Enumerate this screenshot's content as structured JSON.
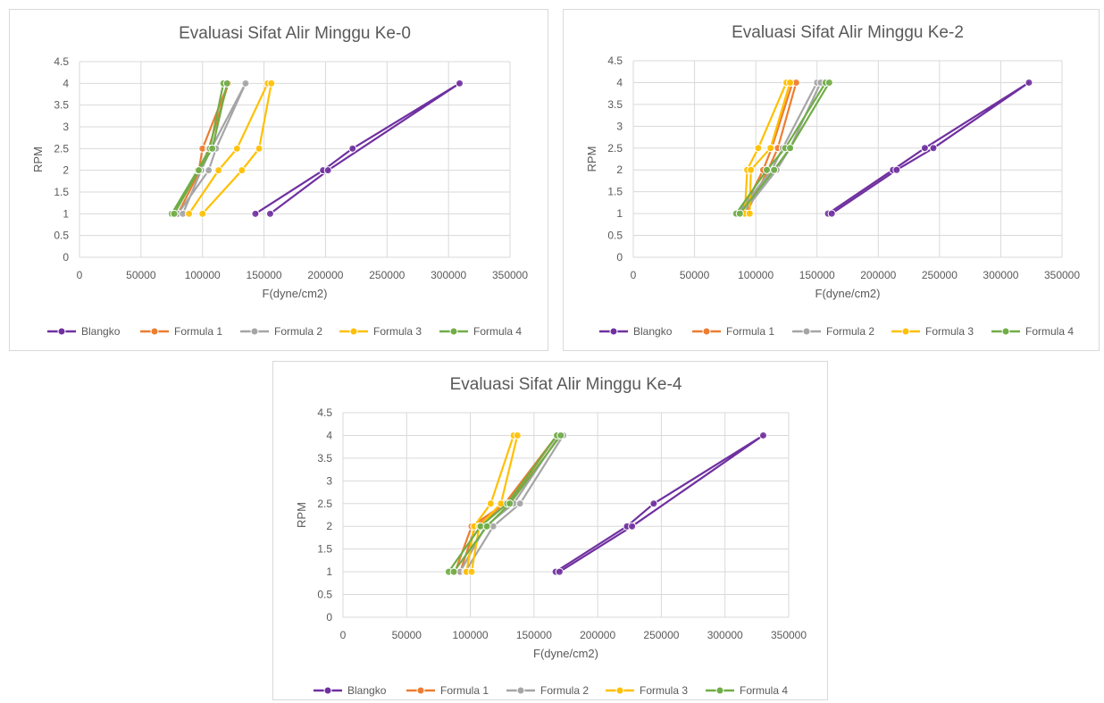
{
  "chart_data": [
    {
      "type": "line",
      "title": "Evaluasi Sifat Alir Minggu Ke-0",
      "xlabel": "F(dyne/cm2)",
      "ylabel": "RPM",
      "xlim": [
        0,
        350000
      ],
      "ylim": [
        0,
        4.5
      ],
      "x_ticks": [
        "0",
        "50000",
        "100000",
        "150000",
        "200000",
        "250000",
        "300000",
        "350000"
      ],
      "y_ticks": [
        "0",
        "0.5",
        "1",
        "1.5",
        "2",
        "2.5",
        "3",
        "3.5",
        "4",
        "4.5"
      ],
      "legend_position": "bottom",
      "grid": true,
      "series": [
        {
          "name": "Blangko",
          "color": "#7030a0",
          "points": [
            [
              143000,
              1
            ],
            [
              198000,
              2
            ],
            [
              222000,
              2.5
            ],
            [
              309000,
              4
            ],
            [
              202000,
              2
            ],
            [
              155000,
              1
            ]
          ]
        },
        {
          "name": "Formula 1",
          "color": "#ed7d31",
          "points": [
            [
              76000,
              1
            ],
            [
              97000,
              2
            ],
            [
              100000,
              2.5
            ],
            [
              121000,
              4
            ],
            [
              105000,
              2.5
            ],
            [
              98000,
              2
            ],
            [
              80000,
              1
            ]
          ]
        },
        {
          "name": "Formula 2",
          "color": "#a5a5a5",
          "points": [
            [
              80000,
              1
            ],
            [
              105000,
              2
            ],
            [
              111000,
              2.5
            ],
            [
              135000,
              4
            ],
            [
              107000,
              2.5
            ],
            [
              99000,
              2
            ],
            [
              84000,
              1
            ]
          ]
        },
        {
          "name": "Formula 3",
          "color": "#ffc000",
          "points": [
            [
              89000,
              1
            ],
            [
              113000,
              2
            ],
            [
              128000,
              2.5
            ],
            [
              153000,
              4
            ],
            [
              156000,
              4
            ],
            [
              146000,
              2.5
            ],
            [
              132000,
              2
            ],
            [
              100000,
              1
            ]
          ]
        },
        {
          "name": "Formula 4",
          "color": "#70ad47",
          "points": [
            [
              75000,
              1
            ],
            [
              96000,
              2
            ],
            [
              106000,
              2.5
            ],
            [
              117000,
              4
            ],
            [
              120000,
              4
            ],
            [
              108000,
              2.5
            ],
            [
              97000,
              2
            ],
            [
              77000,
              1
            ]
          ]
        }
      ]
    },
    {
      "type": "line",
      "title": "Evaluasi Sifat Alir Minggu Ke-2",
      "xlabel": "F(dyne/cm2)",
      "ylabel": "RPM",
      "xlim": [
        0,
        350000
      ],
      "ylim": [
        0,
        4.5
      ],
      "x_ticks": [
        "0",
        "50000",
        "100000",
        "150000",
        "200000",
        "250000",
        "300000",
        "350000"
      ],
      "y_ticks": [
        "0",
        "0.5",
        "1",
        "1.5",
        "2",
        "2.5",
        "3",
        "3.5",
        "4",
        "4.5"
      ],
      "legend_position": "bottom",
      "grid": true,
      "series": [
        {
          "name": "Blangko",
          "color": "#7030a0",
          "points": [
            [
              159000,
              1
            ],
            [
              212000,
              2
            ],
            [
              238000,
              2.5
            ],
            [
              323000,
              4
            ],
            [
              245000,
              2.5
            ],
            [
              215000,
              2
            ],
            [
              162000,
              1
            ]
          ]
        },
        {
          "name": "Formula 1",
          "color": "#ed7d31",
          "points": [
            [
              88000,
              1
            ],
            [
              106000,
              2
            ],
            [
              113000,
              2.5
            ],
            [
              130000,
              4
            ],
            [
              133000,
              4
            ],
            [
              118000,
              2.5
            ],
            [
              110000,
              2
            ],
            [
              92000,
              1
            ]
          ]
        },
        {
          "name": "Formula 2",
          "color": "#a5a5a5",
          "points": [
            [
              85000,
              1
            ],
            [
              113000,
              2
            ],
            [
              122000,
              2.5
            ],
            [
              150000,
              4
            ],
            [
              153000,
              4
            ],
            [
              128000,
              2.5
            ],
            [
              117000,
              2
            ],
            [
              89000,
              1
            ]
          ]
        },
        {
          "name": "Formula 3",
          "color": "#ffc000",
          "points": [
            [
              91000,
              1
            ],
            [
              93000,
              2
            ],
            [
              102000,
              2.5
            ],
            [
              125000,
              4
            ],
            [
              128000,
              4
            ],
            [
              112000,
              2.5
            ],
            [
              96000,
              2
            ],
            [
              95000,
              1
            ]
          ]
        },
        {
          "name": "Formula 4",
          "color": "#70ad47",
          "points": [
            [
              84000,
              1
            ],
            [
              109000,
              2
            ],
            [
              124000,
              2.5
            ],
            [
              157000,
              4
            ],
            [
              160000,
              4
            ],
            [
              128000,
              2.5
            ],
            [
              115000,
              2
            ],
            [
              87000,
              1
            ]
          ]
        }
      ]
    },
    {
      "type": "line",
      "title": "Evaluasi Sifat Alir Minggu Ke-4",
      "xlabel": "F(dyne/cm2)",
      "ylabel": "RPM",
      "xlim": [
        0,
        350000
      ],
      "ylim": [
        0,
        4.5
      ],
      "x_ticks": [
        "0",
        "50000",
        "100000",
        "150000",
        "200000",
        "250000",
        "300000",
        "350000"
      ],
      "y_ticks": [
        "0",
        "0.5",
        "1",
        "1.5",
        "2",
        "2.5",
        "3",
        "3.5",
        "4",
        "4.5"
      ],
      "legend_position": "bottom",
      "grid": true,
      "series": [
        {
          "name": "Blangko",
          "color": "#7030a0",
          "points": [
            [
              167000,
              1
            ],
            [
              223000,
              2
            ],
            [
              244000,
              2.5
            ],
            [
              330000,
              4
            ],
            [
              227000,
              2
            ],
            [
              170000,
              1
            ]
          ]
        },
        {
          "name": "Formula 1",
          "color": "#ed7d31",
          "points": [
            [
              88000,
              1
            ],
            [
              101000,
              2
            ],
            [
              127000,
              2.5
            ],
            [
              168000,
              4
            ],
            [
              130000,
              2.5
            ],
            [
              104000,
              2
            ],
            [
              92000,
              1
            ]
          ]
        },
        {
          "name": "Formula 2",
          "color": "#a5a5a5",
          "points": [
            [
              92000,
              1
            ],
            [
              112000,
              2
            ],
            [
              134000,
              2.5
            ],
            [
              170000,
              4
            ],
            [
              173000,
              4
            ],
            [
              139000,
              2.5
            ],
            [
              118000,
              2
            ],
            [
              96000,
              1
            ]
          ]
        },
        {
          "name": "Formula 3",
          "color": "#ffc000",
          "points": [
            [
              97000,
              1
            ],
            [
              103000,
              2
            ],
            [
              116000,
              2.5
            ],
            [
              134000,
              4
            ],
            [
              137000,
              4
            ],
            [
              124000,
              2.5
            ],
            [
              107000,
              2
            ],
            [
              101000,
              1
            ]
          ]
        },
        {
          "name": "Formula 4",
          "color": "#70ad47",
          "points": [
            [
              83000,
              1
            ],
            [
              108000,
              2
            ],
            [
              129000,
              2.5
            ],
            [
              168000,
              4
            ],
            [
              171000,
              4
            ],
            [
              131000,
              2.5
            ],
            [
              113000,
              2
            ],
            [
              87000,
              1
            ]
          ]
        }
      ]
    }
  ]
}
